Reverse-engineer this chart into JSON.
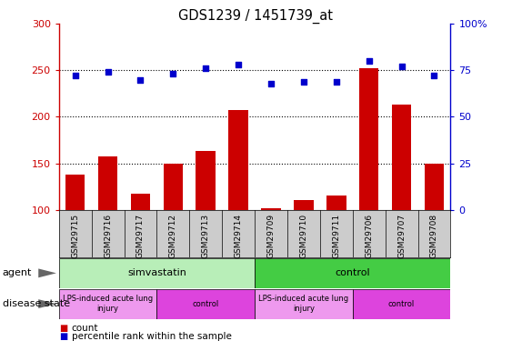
{
  "title": "GDS1239 / 1451739_at",
  "samples": [
    "GSM29715",
    "GSM29716",
    "GSM29717",
    "GSM29712",
    "GSM29713",
    "GSM29714",
    "GSM29709",
    "GSM29710",
    "GSM29711",
    "GSM29706",
    "GSM29707",
    "GSM29708"
  ],
  "count_values": [
    138,
    157,
    117,
    150,
    163,
    207,
    102,
    110,
    115,
    252,
    213,
    150
  ],
  "percentile_values": [
    72,
    74,
    70,
    73,
    76,
    78,
    68,
    69,
    69,
    80,
    77,
    72
  ],
  "ylim_left": [
    100,
    300
  ],
  "ylim_right": [
    0,
    100
  ],
  "left_ticks": [
    100,
    150,
    200,
    250,
    300
  ],
  "right_ticks": [
    0,
    25,
    50,
    75,
    100
  ],
  "agent_groups": [
    {
      "label": "simvastatin",
      "start": 0,
      "end": 6,
      "color": "#B8EEB8"
    },
    {
      "label": "control",
      "start": 6,
      "end": 12,
      "color": "#44CC44"
    }
  ],
  "disease_groups": [
    {
      "label": "LPS-induced acute lung\ninjury",
      "start": 0,
      "end": 3,
      "color": "#EE99EE"
    },
    {
      "label": "control",
      "start": 3,
      "end": 6,
      "color": "#DD44DD"
    },
    {
      "label": "LPS-induced acute lung\ninjury",
      "start": 6,
      "end": 9,
      "color": "#EE99EE"
    },
    {
      "label": "control",
      "start": 9,
      "end": 12,
      "color": "#DD44DD"
    }
  ],
  "bar_color": "#CC0000",
  "dot_color": "#0000CC",
  "left_axis_color": "#CC0000",
  "right_axis_color": "#0000CC",
  "sample_bg_color": "#CCCCCC",
  "legend_count_color": "#CC0000",
  "legend_dot_color": "#0000CC",
  "grid_dotted_values": [
    150,
    200,
    250
  ]
}
